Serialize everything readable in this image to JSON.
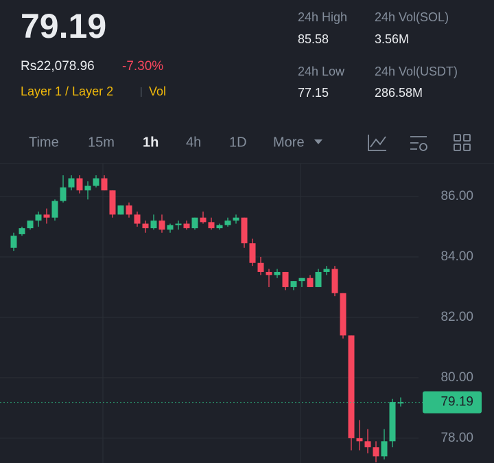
{
  "header": {
    "price": "79.19",
    "fiat_price": "Rs22,078.96",
    "change": "-7.30%",
    "tags": [
      "Layer 1 / Layer 2",
      "Vol"
    ],
    "stats": [
      {
        "label": "24h High",
        "value": "85.58"
      },
      {
        "label": "24h Vol(SOL)",
        "value": "3.56M"
      },
      {
        "label": "24h Low",
        "value": "77.15"
      },
      {
        "label": "24h Vol(USDT)",
        "value": "286.58M"
      }
    ]
  },
  "tabs": [
    "Time",
    "15m",
    "1h",
    "4h",
    "1D",
    "More"
  ],
  "active_tab": 2,
  "chart_data": {
    "type": "candlestick",
    "open": [
      84.3,
      84.75,
      84.95,
      85.2,
      85.4,
      85.3,
      85.85,
      86.3,
      86.6,
      86.2,
      86.35,
      86.6,
      86.2,
      85.4,
      85.7,
      85.4,
      85.1,
      84.95,
      85.2,
      84.9,
      85.05,
      85.1,
      84.95,
      85.3,
      85.15,
      84.95,
      85.05,
      85.2,
      85.3,
      84.45,
      83.8,
      83.5,
      83.4,
      83.5,
      83.0,
      83.2,
      83.3,
      83.0,
      83.5,
      83.6,
      82.8,
      81.4,
      78.0,
      77.9,
      77.7,
      77.4,
      77.9,
      79.15
    ],
    "high": [
      84.8,
      85.0,
      85.2,
      85.5,
      85.6,
      85.9,
      86.7,
      86.7,
      86.7,
      86.5,
      86.7,
      86.7,
      86.2,
      85.7,
      85.8,
      85.5,
      85.2,
      85.4,
      85.4,
      85.1,
      85.2,
      85.2,
      85.3,
      85.5,
      85.3,
      85.1,
      85.3,
      85.4,
      85.3,
      84.6,
      84.0,
      83.6,
      83.6,
      83.5,
      83.2,
      83.3,
      83.4,
      83.6,
      83.7,
      83.7,
      82.8,
      81.4,
      78.6,
      78.3,
      77.9,
      78.3,
      79.3,
      79.35
    ],
    "low": [
      84.2,
      84.7,
      84.9,
      85.0,
      85.1,
      85.2,
      85.8,
      86.2,
      86.1,
      85.9,
      86.3,
      86.2,
      85.3,
      85.4,
      85.3,
      85.0,
      84.8,
      84.9,
      84.8,
      84.8,
      84.9,
      84.9,
      84.9,
      85.1,
      84.9,
      84.9,
      85.0,
      85.1,
      84.3,
      83.7,
      83.4,
      83.0,
      83.3,
      82.9,
      82.9,
      83.0,
      83.0,
      83.0,
      83.4,
      82.7,
      81.3,
      77.6,
      77.6,
      77.5,
      77.2,
      77.3,
      77.7,
      79.05
    ],
    "close": [
      84.7,
      84.95,
      85.2,
      85.4,
      85.3,
      85.85,
      86.3,
      86.6,
      86.2,
      86.35,
      86.6,
      86.2,
      85.4,
      85.7,
      85.4,
      85.1,
      84.95,
      85.2,
      84.9,
      85.05,
      85.1,
      84.95,
      85.3,
      85.15,
      84.95,
      85.05,
      85.2,
      85.3,
      84.45,
      83.8,
      83.5,
      83.4,
      83.5,
      83.0,
      83.2,
      83.3,
      83.0,
      83.5,
      83.6,
      82.8,
      81.4,
      78.0,
      77.9,
      77.7,
      77.4,
      77.9,
      79.2,
      79.19
    ],
    "up_color": "#2ebd85",
    "down_color": "#f6465d",
    "ylim": [
      77.18,
      87.09
    ],
    "yticks": [
      {
        "value": 78,
        "label": "78.00"
      },
      {
        "value": 80,
        "label": "80.00"
      },
      {
        "value": 82,
        "label": "82.00"
      },
      {
        "value": 84,
        "label": "84.00"
      },
      {
        "value": 86,
        "label": "86.00"
      }
    ],
    "grid": true,
    "last_price": 79.19
  }
}
